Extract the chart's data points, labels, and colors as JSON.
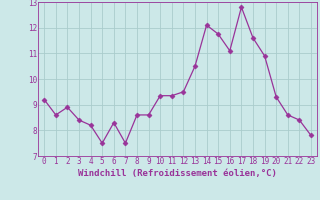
{
  "x": [
    0,
    1,
    2,
    3,
    4,
    5,
    6,
    7,
    8,
    9,
    10,
    11,
    12,
    13,
    14,
    15,
    16,
    17,
    18,
    19,
    20,
    21,
    22,
    23
  ],
  "y": [
    9.2,
    8.6,
    8.9,
    8.4,
    8.2,
    7.5,
    8.3,
    7.5,
    8.6,
    8.6,
    9.35,
    9.35,
    9.5,
    10.5,
    12.1,
    11.75,
    11.1,
    12.8,
    11.6,
    10.9,
    9.3,
    8.6,
    8.4,
    7.8
  ],
  "line_color": "#993399",
  "marker": "D",
  "marker_size": 2.5,
  "line_width": 0.9,
  "bg_color": "#cce8e8",
  "grid_color": "#aacccc",
  "xlabel": "Windchill (Refroidissement éolien,°C)",
  "xlim": [
    -0.5,
    23.5
  ],
  "ylim": [
    7,
    13
  ],
  "yticks": [
    7,
    8,
    9,
    10,
    11,
    12,
    13
  ],
  "xticks": [
    0,
    1,
    2,
    3,
    4,
    5,
    6,
    7,
    8,
    9,
    10,
    11,
    12,
    13,
    14,
    15,
    16,
    17,
    18,
    19,
    20,
    21,
    22,
    23
  ],
  "label_color": "#993399",
  "tick_label_size": 5.5,
  "xlabel_size": 6.5
}
